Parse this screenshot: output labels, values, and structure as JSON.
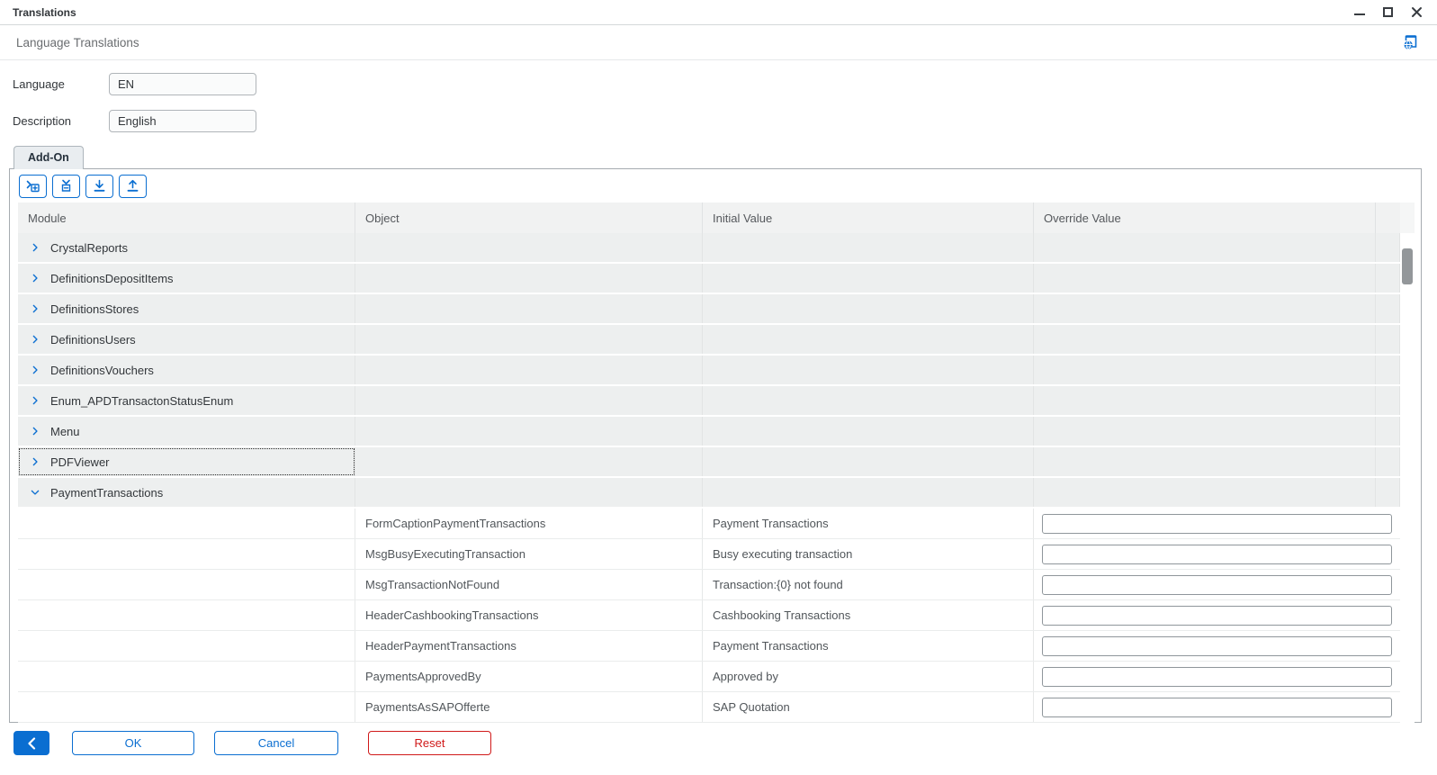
{
  "window": {
    "title": "Translations"
  },
  "header": {
    "title": "Language Translations",
    "icon": "language-settings-icon"
  },
  "form": {
    "language": {
      "label": "Language",
      "value": "EN"
    },
    "description": {
      "label": "Description",
      "value": "English"
    }
  },
  "tabs": [
    {
      "label": "Add-On",
      "active": true
    }
  ],
  "toolbar": {
    "buttons": [
      {
        "icon": "expand-all-icon"
      },
      {
        "icon": "collapse-all-icon"
      },
      {
        "icon": "download-icon"
      },
      {
        "icon": "upload-icon"
      }
    ]
  },
  "table": {
    "columns": [
      "Module",
      "Object",
      "Initial Value",
      "Override Value"
    ],
    "modules": [
      {
        "name": "CrystalReports",
        "expanded": false,
        "focused": false
      },
      {
        "name": "DefinitionsDepositItems",
        "expanded": false,
        "focused": false
      },
      {
        "name": "DefinitionsStores",
        "expanded": false,
        "focused": false
      },
      {
        "name": "DefinitionsUsers",
        "expanded": false,
        "focused": false
      },
      {
        "name": "DefinitionsVouchers",
        "expanded": false,
        "focused": false
      },
      {
        "name": "Enum_APDTransactonStatusEnum",
        "expanded": false,
        "focused": false
      },
      {
        "name": "Menu",
        "expanded": false,
        "focused": false
      },
      {
        "name": "PDFViewer",
        "expanded": false,
        "focused": true
      },
      {
        "name": "PaymentTransactions",
        "expanded": true,
        "focused": false,
        "children": [
          {
            "object": "FormCaptionPaymentTransactions",
            "initial": "Payment Transactions",
            "override": ""
          },
          {
            "object": "MsgBusyExecutingTransaction",
            "initial": "Busy executing transaction",
            "override": ""
          },
          {
            "object": "MsgTransactionNotFound",
            "initial": "Transaction:{0} not found",
            "override": ""
          },
          {
            "object": "HeaderCashbookingTransactions",
            "initial": "Cashbooking Transactions",
            "override": ""
          },
          {
            "object": "HeaderPaymentTransactions",
            "initial": "Payment Transactions",
            "override": ""
          },
          {
            "object": "PaymentsApprovedBy",
            "initial": "Approved by",
            "override": ""
          },
          {
            "object": "PaymentsAsSAPOfferte",
            "initial": "SAP Quotation",
            "override": ""
          }
        ]
      }
    ]
  },
  "scrollbar": {
    "thumb_position": "top"
  },
  "footer": {
    "ok_label": "OK",
    "cancel_label": "Cancel",
    "reset_label": "Reset"
  },
  "colors": {
    "accent": "#0a6ed1",
    "danger": "#d01919",
    "row_group_bg": "#edefef",
    "header_bg": "#f1f2f2"
  }
}
